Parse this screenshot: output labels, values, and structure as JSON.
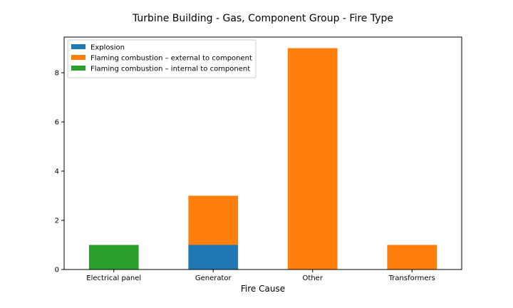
{
  "chart_data": {
    "type": "bar",
    "stacked": true,
    "title": "Turbine Building - Gas, Component Group -  Fire Type",
    "xlabel": "Fire Cause",
    "ylabel": "",
    "categories": [
      "Electrical panel",
      "Generator",
      "Other",
      "Transformers"
    ],
    "series": [
      {
        "name": "Explosion",
        "color": "#1f77b4",
        "values": [
          0,
          1,
          0,
          0
        ]
      },
      {
        "name": "Flaming combustion – external to component",
        "color": "#ff7f0e",
        "values": [
          0,
          2,
          9,
          1
        ]
      },
      {
        "name": "Flaming combustion – internal to component",
        "color": "#2ca02c",
        "values": [
          1,
          0,
          0,
          0
        ]
      }
    ],
    "ylim": [
      0,
      9.45
    ],
    "yticks": [
      0,
      2,
      4,
      6,
      8
    ],
    "legend": "top-left",
    "grid": false
  }
}
